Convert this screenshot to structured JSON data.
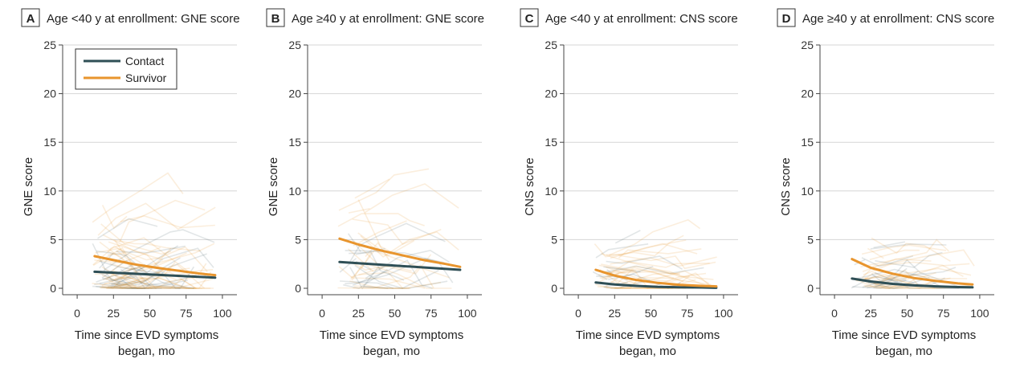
{
  "colors": {
    "contact": "#2f4f56",
    "survivor": "#e8952e",
    "grid": "#d6d6d6",
    "axis": "#444444"
  },
  "legend": {
    "contact": "Contact",
    "survivor": "Survivor"
  },
  "chart_data": [
    {
      "type": "line",
      "panel_letter": "A",
      "title": "Age <40 y at enrollment: GNE score",
      "xlabel_line1": "Time since EVD symptoms",
      "xlabel_line2": "began, mo",
      "ylabel": "GNE score",
      "xlim": [
        -10,
        110
      ],
      "ylim": [
        0,
        25
      ],
      "x_ticks": [
        0,
        25,
        50,
        75,
        100
      ],
      "y_ticks": [
        0,
        5,
        10,
        15,
        20,
        25
      ],
      "grid": true,
      "show_legend": true,
      "legend_position": "top-left",
      "series": [
        {
          "name": "Contact",
          "x": [
            12,
            95
          ],
          "y": [
            1.7,
            1.1
          ]
        },
        {
          "name": "Survivor",
          "x": [
            12,
            25,
            40,
            55,
            70,
            85,
            95
          ],
          "y": [
            3.3,
            2.9,
            2.45,
            2.1,
            1.8,
            1.5,
            1.35
          ]
        }
      ]
    },
    {
      "type": "line",
      "panel_letter": "B",
      "title": "Age ≥40 y at enrollment: GNE score",
      "xlabel_line1": "Time since EVD symptoms",
      "xlabel_line2": "began, mo",
      "ylabel": "GNE score",
      "xlim": [
        -10,
        110
      ],
      "ylim": [
        0,
        25
      ],
      "x_ticks": [
        0,
        25,
        50,
        75,
        100
      ],
      "y_ticks": [
        0,
        5,
        10,
        15,
        20,
        25
      ],
      "grid": true,
      "show_legend": false,
      "series": [
        {
          "name": "Contact",
          "x": [
            12,
            95
          ],
          "y": [
            2.7,
            1.9
          ]
        },
        {
          "name": "Survivor",
          "x": [
            12,
            25,
            40,
            55,
            70,
            85,
            95
          ],
          "y": [
            5.1,
            4.5,
            3.9,
            3.4,
            2.9,
            2.5,
            2.2
          ]
        }
      ]
    },
    {
      "type": "line",
      "panel_letter": "C",
      "title": "Age <40 y at enrollment: CNS score",
      "xlabel_line1": "Time since EVD symptoms",
      "xlabel_line2": "began, mo",
      "ylabel": "CNS score",
      "xlim": [
        -10,
        110
      ],
      "ylim": [
        0,
        25
      ],
      "x_ticks": [
        0,
        25,
        50,
        75,
        100
      ],
      "y_ticks": [
        0,
        5,
        10,
        15,
        20,
        25
      ],
      "grid": true,
      "show_legend": false,
      "series": [
        {
          "name": "Contact",
          "x": [
            12,
            25,
            40,
            55,
            70,
            85,
            95
          ],
          "y": [
            0.6,
            0.4,
            0.25,
            0.15,
            0.1,
            0.08,
            0.05
          ]
        },
        {
          "name": "Survivor",
          "x": [
            12,
            25,
            40,
            55,
            70,
            85,
            95
          ],
          "y": [
            1.9,
            1.3,
            0.85,
            0.55,
            0.35,
            0.25,
            0.2
          ]
        }
      ]
    },
    {
      "type": "line",
      "panel_letter": "D",
      "title": "Age ≥40 y at enrollment: CNS score",
      "xlabel_line1": "Time since EVD symptoms",
      "xlabel_line2": "began, mo",
      "ylabel": "CNS score",
      "xlim": [
        -10,
        110
      ],
      "ylim": [
        0,
        25
      ],
      "x_ticks": [
        0,
        25,
        50,
        75,
        100
      ],
      "y_ticks": [
        0,
        5,
        10,
        15,
        20,
        25
      ],
      "grid": true,
      "show_legend": false,
      "series": [
        {
          "name": "Contact",
          "x": [
            12,
            25,
            40,
            55,
            70,
            85,
            95
          ],
          "y": [
            1.0,
            0.7,
            0.45,
            0.3,
            0.2,
            0.12,
            0.1
          ]
        },
        {
          "name": "Survivor",
          "x": [
            12,
            25,
            40,
            55,
            70,
            85,
            95
          ],
          "y": [
            3.0,
            2.1,
            1.5,
            1.05,
            0.75,
            0.5,
            0.4
          ]
        }
      ]
    }
  ]
}
